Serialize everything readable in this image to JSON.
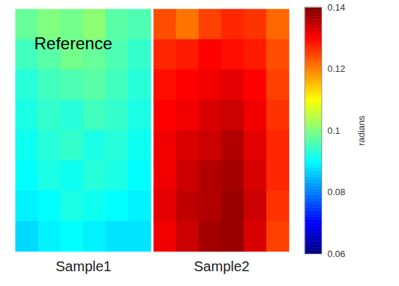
{
  "chart_data": {
    "type": "heatmap",
    "categories": [
      "Sample1",
      "Sample2"
    ],
    "tick_labels": "x",
    "cells": [
      [
        [
          0.098,
          0.1,
          0.099,
          0.101,
          0.097,
          0.096
        ],
        [
          0.095,
          0.097,
          0.099,
          0.098,
          0.096,
          0.094
        ],
        [
          0.093,
          0.095,
          0.096,
          0.097,
          0.095,
          0.093
        ],
        [
          0.092,
          0.094,
          0.093,
          0.095,
          0.094,
          0.092
        ],
        [
          0.091,
          0.093,
          0.094,
          0.092,
          0.093,
          0.091
        ],
        [
          0.09,
          0.092,
          0.091,
          0.093,
          0.092,
          0.09
        ],
        [
          0.089,
          0.09,
          0.092,
          0.091,
          0.09,
          0.089
        ],
        [
          0.087,
          0.089,
          0.09,
          0.089,
          0.088,
          0.088
        ]
      ],
      [
        [
          0.124,
          0.121,
          0.125,
          0.127,
          0.126,
          0.122
        ],
        [
          0.127,
          0.128,
          0.13,
          0.129,
          0.128,
          0.124
        ],
        [
          0.129,
          0.13,
          0.131,
          0.132,
          0.13,
          0.125
        ],
        [
          0.13,
          0.131,
          0.133,
          0.134,
          0.131,
          0.126
        ],
        [
          0.131,
          0.133,
          0.134,
          0.136,
          0.132,
          0.127
        ],
        [
          0.131,
          0.134,
          0.136,
          0.137,
          0.133,
          0.127
        ],
        [
          0.132,
          0.135,
          0.136,
          0.138,
          0.134,
          0.126
        ],
        [
          0.131,
          0.134,
          0.137,
          0.138,
          0.133,
          0.125
        ]
      ]
    ],
    "annotations": [
      {
        "text": "Reference"
      }
    ],
    "colorbar": {
      "label": "radians",
      "range": [
        0.06,
        0.14
      ],
      "ticks": [
        0.06,
        0.08,
        0.1,
        0.12,
        0.14
      ]
    }
  }
}
